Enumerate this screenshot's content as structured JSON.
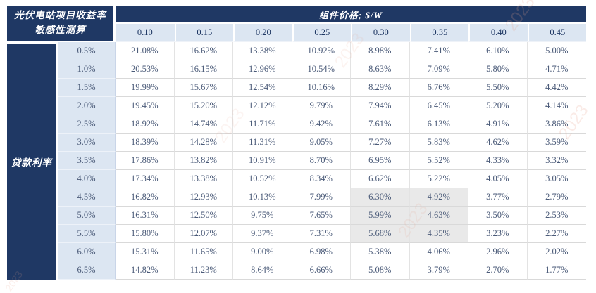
{
  "chart_data": {
    "type": "table",
    "title": "光伏电站项目收益率敏感性测算",
    "corner_header_line1": "光伏电站项目收益率",
    "corner_header_line2": "敏感性测算",
    "column_group_header": "组件价格; $/W",
    "row_group_header": "贷款利率",
    "column_axis_meaning": "component price, $/W",
    "row_axis_meaning": "loan interest rate",
    "column_headers": [
      "0.10",
      "0.15",
      "0.20",
      "0.25",
      "0.30",
      "0.35",
      "0.40",
      "0.45"
    ],
    "row_headers": [
      "0.5%",
      "1.0%",
      "1.5%",
      "2.0%",
      "2.5%",
      "3.0%",
      "3.5%",
      "4.0%",
      "4.5%",
      "5.0%",
      "5.5%",
      "6.0%",
      "6.5%"
    ],
    "values": [
      [
        "21.08%",
        "16.62%",
        "13.38%",
        "10.92%",
        "8.98%",
        "7.41%",
        "6.10%",
        "5.00%"
      ],
      [
        "20.53%",
        "16.15%",
        "12.96%",
        "10.54%",
        "8.63%",
        "7.09%",
        "5.80%",
        "4.71%"
      ],
      [
        "19.99%",
        "15.67%",
        "12.54%",
        "10.16%",
        "8.29%",
        "6.76%",
        "5.50%",
        "4.42%"
      ],
      [
        "19.45%",
        "15.20%",
        "12.12%",
        "9.79%",
        "7.94%",
        "6.45%",
        "5.20%",
        "4.14%"
      ],
      [
        "18.92%",
        "14.74%",
        "11.71%",
        "9.42%",
        "7.61%",
        "6.13%",
        "4.91%",
        "3.86%"
      ],
      [
        "18.39%",
        "14.28%",
        "11.31%",
        "9.05%",
        "7.27%",
        "5.83%",
        "4.62%",
        "3.59%"
      ],
      [
        "17.86%",
        "13.82%",
        "10.91%",
        "8.70%",
        "6.95%",
        "5.52%",
        "4.33%",
        "3.32%"
      ],
      [
        "17.34%",
        "13.38%",
        "10.52%",
        "8.34%",
        "6.62%",
        "5.22%",
        "4.05%",
        "3.05%"
      ],
      [
        "16.82%",
        "12.93%",
        "10.13%",
        "7.99%",
        "6.30%",
        "4.92%",
        "3.77%",
        "2.79%"
      ],
      [
        "16.31%",
        "12.50%",
        "9.75%",
        "7.65%",
        "5.99%",
        "4.63%",
        "3.50%",
        "2.53%"
      ],
      [
        "15.80%",
        "12.07%",
        "9.37%",
        "7.31%",
        "5.68%",
        "4.35%",
        "3.23%",
        "2.27%"
      ],
      [
        "15.31%",
        "11.65%",
        "9.00%",
        "6.98%",
        "5.38%",
        "4.06%",
        "2.96%",
        "2.02%"
      ],
      [
        "14.82%",
        "11.23%",
        "8.64%",
        "6.66%",
        "5.08%",
        "3.79%",
        "2.70%",
        "1.77%"
      ]
    ],
    "highlight": {
      "row_start": 8,
      "row_end": 10,
      "col_start": 4,
      "col_end": 5
    },
    "layout": {
      "grid_on": true,
      "legend_position": "none"
    },
    "colors": {
      "header_bg": "#1f3864",
      "subheader_bg": "#dce6f2",
      "row_label_bg": "#dce6f2",
      "cell_bg": "#ffffff",
      "highlight_bg": "#e9e9e9",
      "value_text": "#4a5a78",
      "header_text": "#ffffff",
      "grid_line": "#d9d9d9"
    },
    "watermark": {
      "text": "2023",
      "color": "#e8a08a"
    }
  }
}
